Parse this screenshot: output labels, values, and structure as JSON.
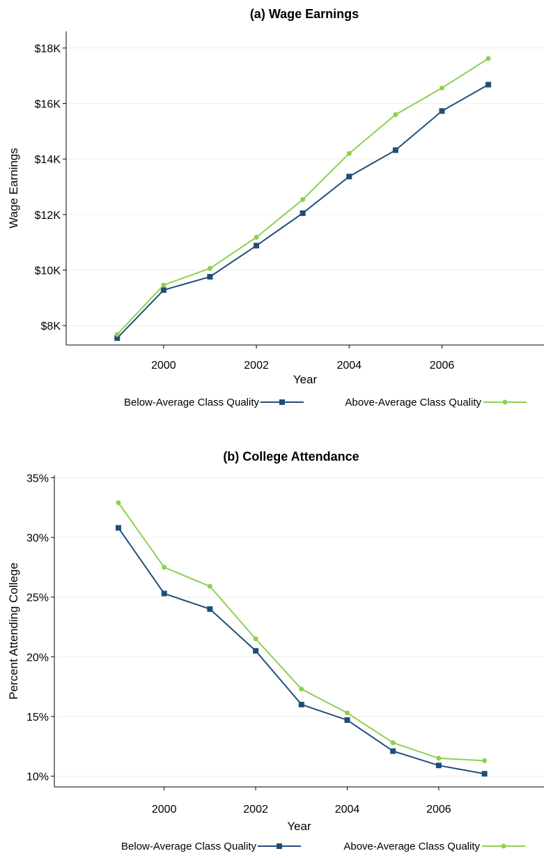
{
  "chart_data": [
    {
      "type": "line",
      "title": "(a) Wage Earnings",
      "xlabel": "Year",
      "ylabel": "Wage Earnings",
      "x": [
        1999,
        2000,
        2001,
        2002,
        2003,
        2004,
        2005,
        2006,
        2007
      ],
      "xlim": [
        1997.9,
        2008.2
      ],
      "ylim": [
        7300,
        18600
      ],
      "xticks": [
        2000,
        2002,
        2004,
        2006
      ],
      "xtick_labels": [
        "2000",
        "2002",
        "2004",
        "2006"
      ],
      "yticks": [
        8000,
        10000,
        12000,
        14000,
        16000,
        18000
      ],
      "ytick_labels": [
        "$8K",
        "$10K",
        "$12K",
        "$14K",
        "$16K",
        "$18K"
      ],
      "grid": true,
      "legend_position": "bottom",
      "series": [
        {
          "name": "Below-Average Class Quality",
          "color": "#1f4e79",
          "marker": "square",
          "values": [
            7550,
            9280,
            9760,
            10880,
            12050,
            13370,
            14320,
            15730,
            16680
          ]
        },
        {
          "name": "Above-Average Class Quality",
          "color": "#8dd14f",
          "marker": "circle",
          "values": [
            7680,
            9460,
            10060,
            11180,
            12540,
            14200,
            15600,
            16560,
            17620
          ]
        }
      ]
    },
    {
      "type": "line",
      "title": "(b) College Attendance",
      "xlabel": "Year",
      "ylabel": "Percent Attending College",
      "x": [
        1999,
        2000,
        2001,
        2002,
        2003,
        2004,
        2005,
        2006,
        2007
      ],
      "xlim": [
        1997.6,
        2008.3
      ],
      "ylim": [
        9.1,
        35.2
      ],
      "xticks": [
        2000,
        2002,
        2004,
        2006
      ],
      "xtick_labels": [
        "2000",
        "2002",
        "2004",
        "2006"
      ],
      "yticks": [
        10,
        15,
        20,
        25,
        30,
        35
      ],
      "ytick_labels": [
        "10%",
        "15%",
        "20%",
        "25%",
        "30%",
        "35%"
      ],
      "grid": true,
      "legend_position": "bottom",
      "series": [
        {
          "name": "Below-Average Class Quality",
          "color": "#1f4e79",
          "marker": "square",
          "values": [
            30.8,
            25.3,
            24.0,
            20.5,
            16.0,
            14.7,
            12.1,
            10.9,
            10.2
          ]
        },
        {
          "name": "Above-Average Class Quality",
          "color": "#8dd14f",
          "marker": "circle",
          "values": [
            32.9,
            27.5,
            25.9,
            21.5,
            17.3,
            15.3,
            12.8,
            11.5,
            11.3
          ]
        }
      ]
    }
  ]
}
